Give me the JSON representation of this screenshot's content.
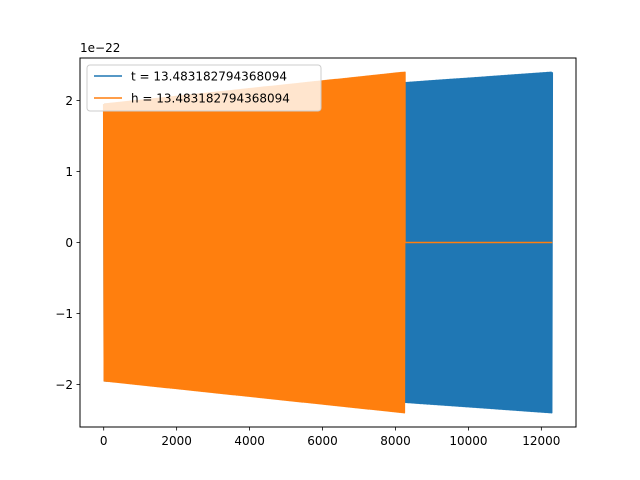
{
  "chart_data": {
    "type": "line",
    "title": "",
    "xlabel": "",
    "ylabel": "",
    "offset_label": "1e−22",
    "xlim": [
      -650,
      12950
    ],
    "ylim": [
      -2.6,
      2.6
    ],
    "xticks": [
      0,
      2000,
      4000,
      6000,
      8000,
      10000,
      12000
    ],
    "xtick_labels": [
      "0",
      "2000",
      "4000",
      "6000",
      "8000",
      "10000",
      "12000"
    ],
    "yticks": [
      -2,
      -1,
      0,
      1,
      2
    ],
    "ytick_labels": [
      "−2",
      "−1",
      "0",
      "1",
      "2"
    ],
    "grid": false,
    "legend_position": "upper left",
    "series": [
      {
        "name": "t = 13.483182794368094",
        "color": "#1f77b4",
        "x_start": 0,
        "x_end": 12300,
        "amplitude_start": 1.95,
        "amplitude_end": 2.4,
        "oscillations": 380
      },
      {
        "name": "h = 13.483182794368094",
        "color": "#ff7f0e",
        "x_start": 0,
        "x_end": 8260,
        "amplitude_start": 1.95,
        "amplitude_end": 2.4,
        "oscillations": 260,
        "tail_x_end": 12300,
        "tail_value": 0
      }
    ]
  }
}
